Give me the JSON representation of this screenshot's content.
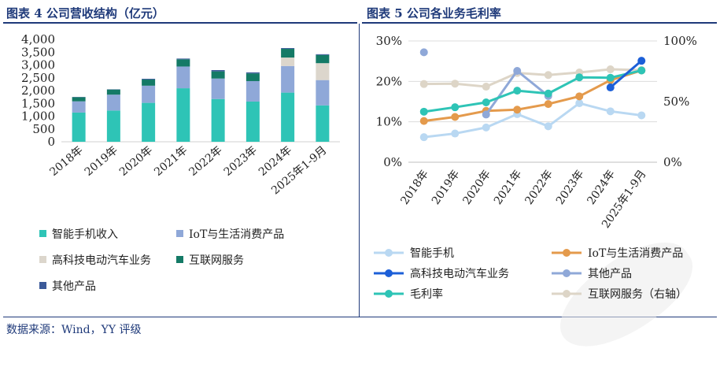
{
  "left_title": "图表 4 公司营收结构（亿元）",
  "right_title": "图表 5 公司各业务毛利率",
  "footer": "数据来源：Wind，YY 评级",
  "chart_data": [
    {
      "type": "bar",
      "stacked": true,
      "title": "图表 4 公司营收结构（亿元）",
      "categories": [
        "2018年",
        "2019年",
        "2020年",
        "2021年",
        "2022年",
        "2023年",
        "2024年",
        "2025年1-9月"
      ],
      "ylim": [
        0,
        4000
      ],
      "yticks": [
        0,
        500,
        1000,
        1500,
        2000,
        2500,
        3000,
        3500,
        4000
      ],
      "ytick_labels": [
        "0",
        "500",
        "1,000",
        "1,500",
        "2,000",
        "2,500",
        "3,000",
        "3,500",
        "4,000"
      ],
      "series": [
        {
          "name": "智能手机收入",
          "color": "#2ec4b6",
          "values": [
            1140,
            1220,
            1520,
            2090,
            1670,
            1570,
            1920,
            1420
          ]
        },
        {
          "name": "IoT与生活消费产品",
          "color": "#8fa8d8",
          "values": [
            440,
            620,
            670,
            850,
            800,
            800,
            1040,
            990
          ]
        },
        {
          "name": "高科技电动汽车业务",
          "color": "#dcd6cc",
          "values": [
            0,
            0,
            0,
            0,
            0,
            0,
            330,
            660
          ]
        },
        {
          "name": "互联网服务",
          "color": "#147a66",
          "values": [
            160,
            200,
            240,
            280,
            280,
            300,
            340,
            320
          ]
        },
        {
          "name": "其他产品",
          "color": "#3b5a99",
          "values": [
            10,
            10,
            30,
            30,
            50,
            40,
            30,
            30
          ]
        }
      ],
      "legend": [
        "智能手机收入",
        "IoT与生活消费产品",
        "高科技电动汽车业务",
        "互联网服务",
        "其他产品"
      ]
    },
    {
      "type": "line",
      "title": "图表 5 公司各业务毛利率",
      "categories": [
        "2018年",
        "2019年",
        "2020年",
        "2021年",
        "2022年",
        "2023年",
        "2024年",
        "2025年1-9月"
      ],
      "ylim": [
        0,
        30
      ],
      "yticks": [
        0,
        10,
        20,
        30
      ],
      "ytick_labels": [
        "0%",
        "10%",
        "20%",
        "30%"
      ],
      "y2lim": [
        0,
        100
      ],
      "y2ticks": [
        0,
        50,
        100
      ],
      "y2tick_labels": [
        "0%",
        "50%",
        "100%"
      ],
      "series": [
        {
          "name": "智能手机",
          "color": "#b9d8f2",
          "axis": "left",
          "values": [
            6.2,
            7.1,
            8.6,
            11.9,
            8.9,
            14.6,
            12.6,
            11.6
          ]
        },
        {
          "name": "IoT与生活消费产品",
          "color": "#e49a4c",
          "axis": "left",
          "values": [
            10.2,
            11.2,
            12.7,
            13.0,
            14.4,
            16.3,
            20.3,
            22.7
          ]
        },
        {
          "name": "高科技电动汽车业务",
          "color": "#1c5fd8",
          "axis": "left",
          "values": [
            null,
            null,
            null,
            null,
            null,
            null,
            18.5,
            25.1
          ]
        },
        {
          "name": "其他产品",
          "color": "#8fa8d8",
          "axis": "left",
          "values": [
            27.2,
            null,
            11.8,
            22.6,
            16.4,
            null,
            null,
            null
          ]
        },
        {
          "name": "毛利率",
          "color": "#2ec4b6",
          "axis": "left",
          "values": [
            12.5,
            13.6,
            14.8,
            17.7,
            17.0,
            21.0,
            20.9,
            22.7
          ]
        },
        {
          "name": "互联网服务（右轴）",
          "color": "#ddd5c7",
          "axis": "right",
          "values": [
            64.5,
            64.8,
            62.3,
            73.6,
            71.9,
            74.0,
            76.6,
            76.0
          ]
        }
      ],
      "legend": [
        "智能手机",
        "IoT与生活消费产品",
        "高科技电动汽车业务",
        "其他产品",
        "毛利率",
        "互联网服务（右轴）"
      ]
    }
  ]
}
